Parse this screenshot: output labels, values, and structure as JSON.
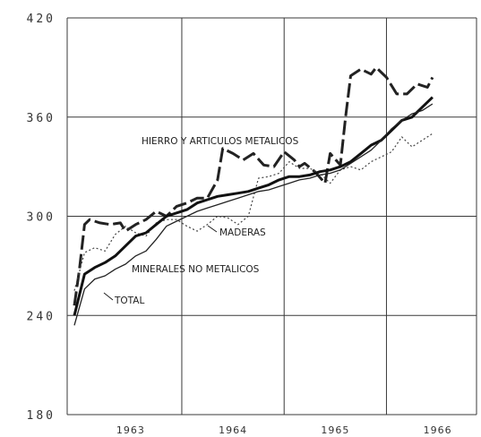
{
  "chart_data": {
    "type": "line",
    "title": "",
    "xlabel": "",
    "ylabel": "",
    "ylim": [
      180,
      420
    ],
    "xlim": [
      1962.58,
      1966.58
    ],
    "yticks": [
      "420",
      "360",
      "300",
      "240",
      "180"
    ],
    "xticks": [
      {
        "label": "1963",
        "value": 1963.0
      },
      {
        "label": "1964",
        "value": 1964.0
      },
      {
        "label": "1965",
        "value": 1965.0
      },
      {
        "label": "1966",
        "value": 1966.0
      }
    ],
    "grid": true,
    "series": [
      {
        "name": "HIERRO Y ARTICULOS METALICOS",
        "style": "dashed-heavy",
        "x": [
          1962.65,
          1962.7,
          1962.75,
          1962.8,
          1962.9,
          1963.0,
          1963.1,
          1963.15,
          1963.25,
          1963.35,
          1963.45,
          1963.55,
          1963.65,
          1963.75,
          1963.85,
          1963.95,
          1964.05,
          1964.1,
          1964.2,
          1964.3,
          1964.4,
          1964.5,
          1964.6,
          1964.7,
          1964.8,
          1964.85,
          1964.9,
          1965.0,
          1965.1,
          1965.15,
          1965.25,
          1965.3,
          1965.35,
          1965.45,
          1965.55,
          1965.6,
          1965.7,
          1965.8,
          1965.9,
          1966.0,
          1966.1,
          1966.15
        ],
        "y": [
          246,
          268,
          295,
          298,
          296,
          295,
          296,
          291,
          295,
          298,
          303,
          300,
          306,
          308,
          311,
          311,
          322,
          341,
          338,
          334,
          338,
          331,
          330,
          339,
          334,
          330,
          332,
          327,
          320,
          338,
          331,
          360,
          385,
          389,
          386,
          390,
          384,
          374,
          374,
          380,
          378,
          384
        ]
      },
      {
        "name": "MADERAS",
        "style": "dotted",
        "x": [
          1962.65,
          1962.75,
          1962.85,
          1962.95,
          1963.05,
          1963.15,
          1963.25,
          1963.35,
          1963.45,
          1963.55,
          1963.65,
          1963.75,
          1963.85,
          1963.95,
          1964.05,
          1964.15,
          1964.25,
          1964.35,
          1964.45,
          1964.55,
          1964.65,
          1964.75,
          1964.85,
          1964.95,
          1965.05,
          1965.15,
          1965.25,
          1965.35,
          1965.45,
          1965.55,
          1965.65,
          1965.75,
          1965.85,
          1965.95,
          1966.05,
          1966.15
        ],
        "y": [
          255,
          278,
          281,
          279,
          289,
          294,
          290,
          288,
          296,
          298,
          298,
          294,
          291,
          295,
          300,
          299,
          295,
          300,
          323,
          324,
          326,
          333,
          329,
          329,
          326,
          320,
          328,
          330,
          328,
          333,
          336,
          339,
          348,
          342,
          346,
          350
        ]
      },
      {
        "name": "MINERALES NO METALICOS",
        "style": "solid-heavy",
        "x": [
          1962.65,
          1962.75,
          1962.85,
          1962.95,
          1963.05,
          1963.15,
          1963.25,
          1963.35,
          1963.45,
          1963.55,
          1963.65,
          1963.75,
          1963.85,
          1963.95,
          1964.05,
          1964.15,
          1964.25,
          1964.35,
          1964.45,
          1964.55,
          1964.65,
          1964.75,
          1964.85,
          1964.95,
          1965.05,
          1965.15,
          1965.25,
          1965.35,
          1965.45,
          1965.55,
          1965.65,
          1965.75,
          1965.85,
          1965.95,
          1966.05,
          1966.15
        ],
        "y": [
          240,
          265,
          269,
          272,
          276,
          282,
          288,
          290,
          295,
          300,
          302,
          304,
          308,
          310,
          312,
          313,
          314,
          315,
          317,
          319,
          322,
          324,
          324,
          325,
          327,
          328,
          330,
          333,
          338,
          343,
          346,
          352,
          358,
          360,
          366,
          372
        ]
      },
      {
        "name": "TOTAL",
        "style": "solid-thin",
        "x": [
          1962.65,
          1962.75,
          1962.85,
          1962.95,
          1963.05,
          1963.15,
          1963.25,
          1963.35,
          1963.45,
          1963.55,
          1963.65,
          1963.75,
          1963.85,
          1963.95,
          1964.05,
          1964.15,
          1964.25,
          1964.35,
          1964.45,
          1964.55,
          1964.65,
          1964.75,
          1964.85,
          1964.95,
          1965.05,
          1965.15,
          1965.25,
          1965.35,
          1965.45,
          1965.55,
          1965.65,
          1965.75,
          1965.85,
          1965.95,
          1966.05,
          1966.15
        ],
        "y": [
          234,
          256,
          262,
          264,
          268,
          271,
          276,
          279,
          286,
          294,
          297,
          300,
          303,
          305,
          307,
          309,
          311,
          313,
          315,
          316,
          318,
          320,
          322,
          323,
          325,
          326,
          328,
          332,
          336,
          340,
          346,
          353,
          358,
          362,
          364,
          368
        ]
      }
    ],
    "annotations": [
      {
        "text": "HIERRO Y ARTICULOS METALICOS"
      },
      {
        "text": "MADERAS"
      },
      {
        "text": "MINERALES NO METALICOS"
      },
      {
        "text": "TOTAL"
      }
    ]
  }
}
